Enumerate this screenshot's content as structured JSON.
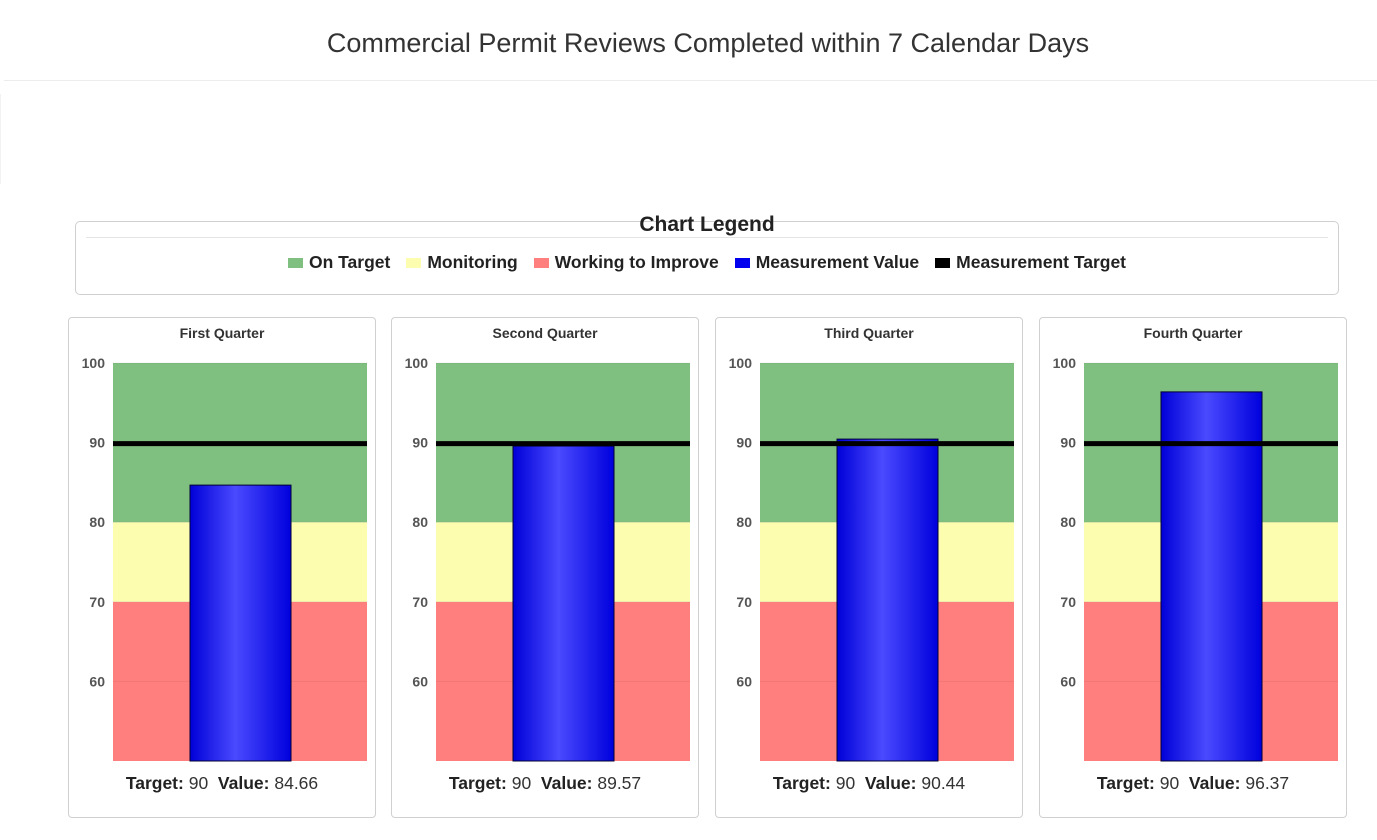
{
  "page": {
    "title": "Commercial Permit Reviews Completed within 7 Calendar Days"
  },
  "legend": {
    "title": "Chart Legend",
    "items": [
      {
        "label": "On Target",
        "color": "#7fbf7f"
      },
      {
        "label": "Monitoring",
        "color": "#fdfdaf"
      },
      {
        "label": "Working to Improve",
        "color": "#ff7f7f"
      },
      {
        "label": "Measurement Value",
        "color": "#0000ee"
      },
      {
        "label": "Measurement Target",
        "color": "#000000"
      }
    ]
  },
  "labels": {
    "target": "Target:",
    "value": "Value:"
  },
  "chart_data": [
    {
      "type": "bar",
      "title": "First Quarter",
      "value": 84.66,
      "target": 90,
      "ylim": [
        50,
        100
      ],
      "ticks": [
        60,
        70,
        80,
        90,
        100
      ],
      "bands": [
        {
          "name": "Working to Improve",
          "from": 50,
          "to": 70
        },
        {
          "name": "Monitoring",
          "from": 70,
          "to": 80
        },
        {
          "name": "On Target",
          "from": 80,
          "to": 100
        }
      ]
    },
    {
      "type": "bar",
      "title": "Second Quarter",
      "value": 89.57,
      "target": 90,
      "ylim": [
        50,
        100
      ],
      "ticks": [
        60,
        70,
        80,
        90,
        100
      ],
      "bands": [
        {
          "name": "Working to Improve",
          "from": 50,
          "to": 70
        },
        {
          "name": "Monitoring",
          "from": 70,
          "to": 80
        },
        {
          "name": "On Target",
          "from": 80,
          "to": 100
        }
      ]
    },
    {
      "type": "bar",
      "title": "Third Quarter",
      "value": 90.44,
      "target": 90,
      "ylim": [
        50,
        100
      ],
      "ticks": [
        60,
        70,
        80,
        90,
        100
      ],
      "bands": [
        {
          "name": "Working to Improve",
          "from": 50,
          "to": 70
        },
        {
          "name": "Monitoring",
          "from": 70,
          "to": 80
        },
        {
          "name": "On Target",
          "from": 80,
          "to": 100
        }
      ]
    },
    {
      "type": "bar",
      "title": "Fourth Quarter",
      "value": 96.37,
      "target": 90,
      "ylim": [
        50,
        100
      ],
      "ticks": [
        60,
        70,
        80,
        90,
        100
      ],
      "bands": [
        {
          "name": "Working to Improve",
          "from": 50,
          "to": 70
        },
        {
          "name": "Monitoring",
          "from": 70,
          "to": 80
        },
        {
          "name": "On Target",
          "from": 80,
          "to": 100
        }
      ]
    }
  ]
}
